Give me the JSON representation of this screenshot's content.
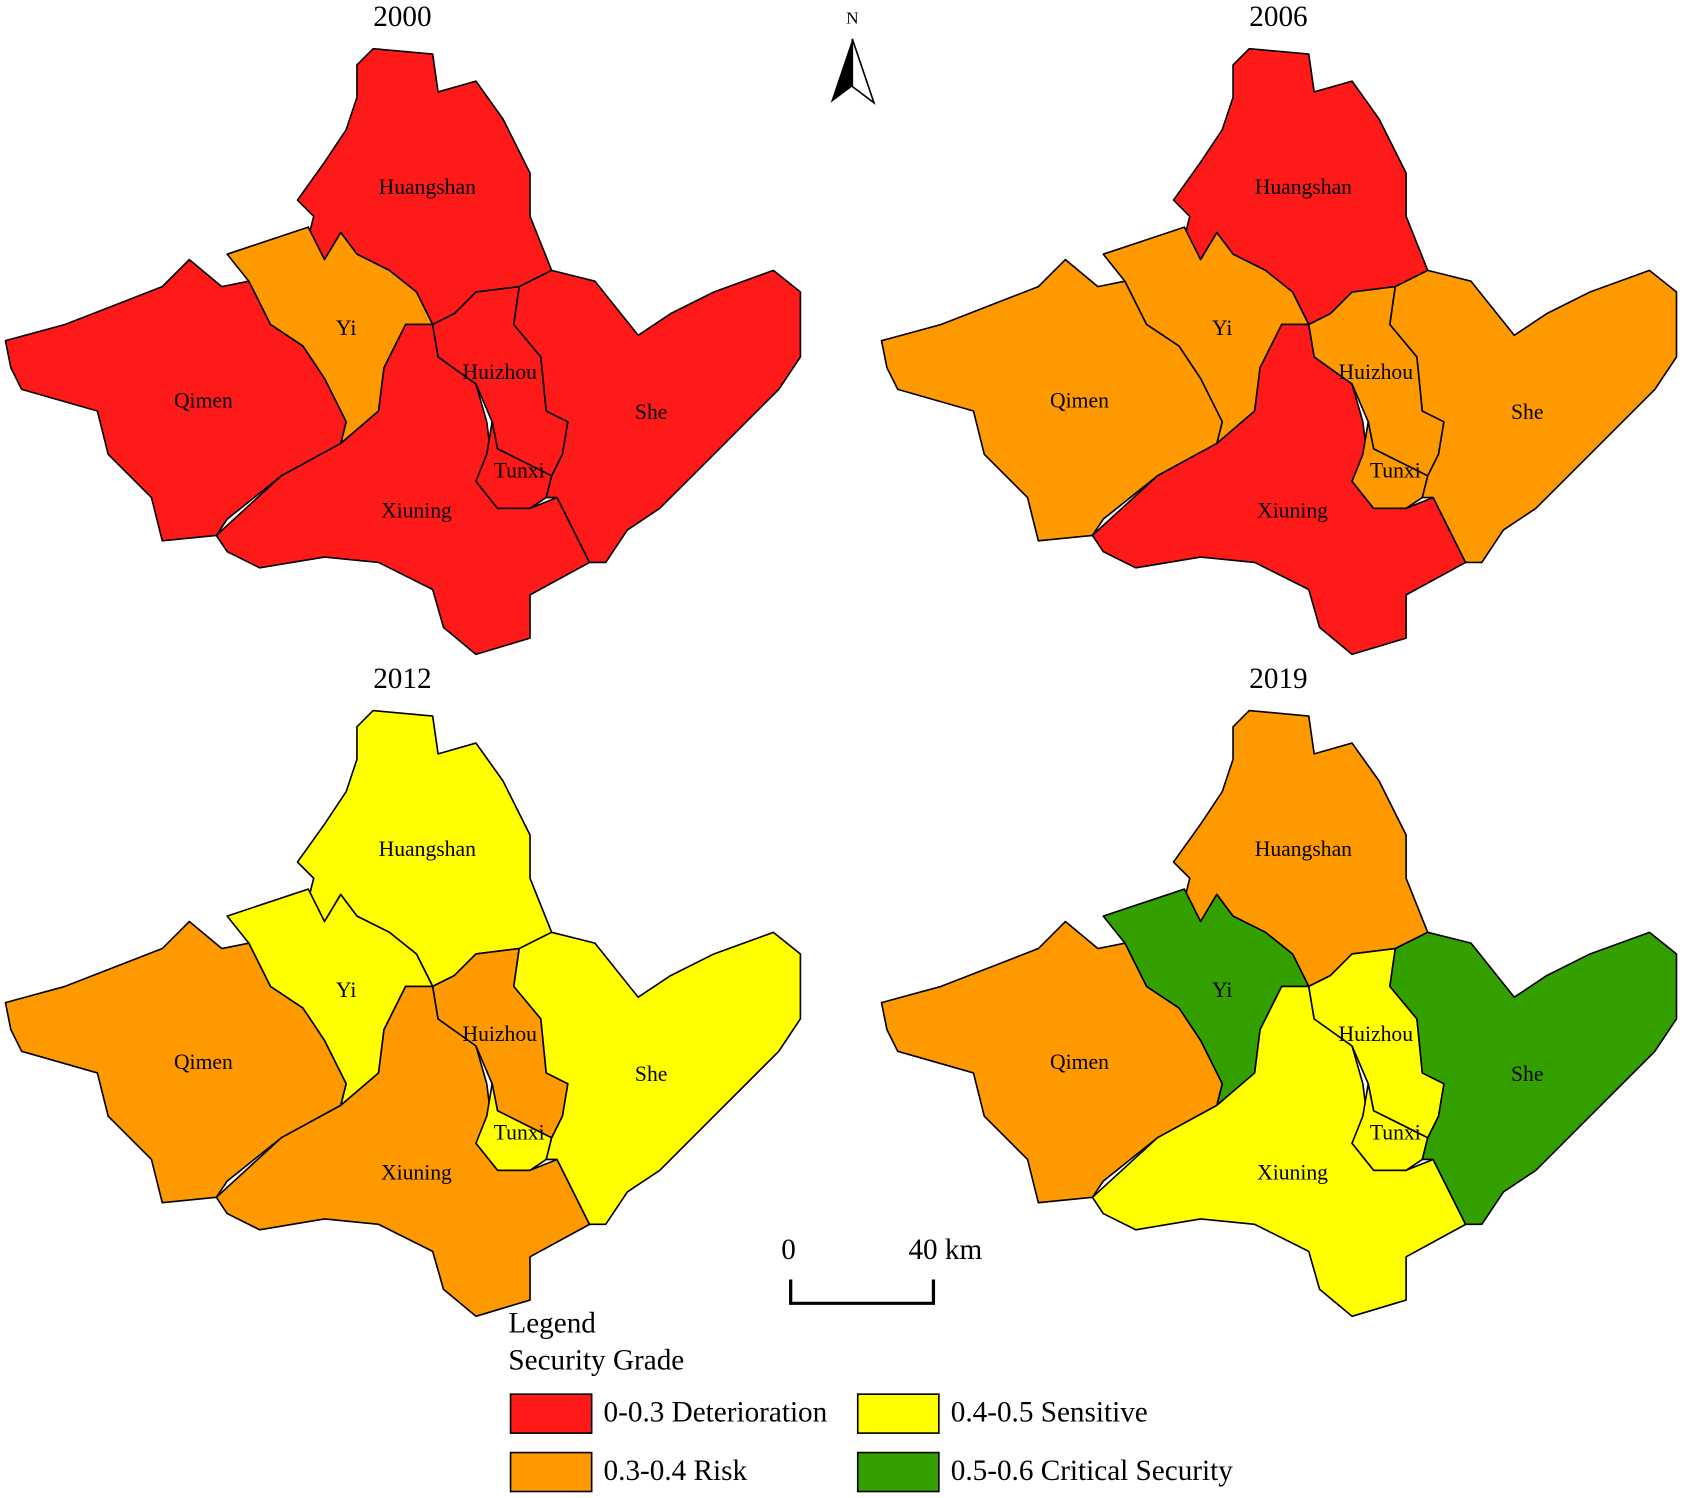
{
  "north": "N",
  "scale": {
    "start": "0",
    "end": "40 km"
  },
  "legend": {
    "title": "Legend",
    "subtitle": "Security Grade",
    "items": [
      {
        "label": "0-0.3 Deterioration",
        "color": "#ff1a1a"
      },
      {
        "label": "0.4-0.5 Sensitive",
        "color": "#ffff00"
      },
      {
        "label": "0.3-0.4 Risk",
        "color": "#ff9900"
      },
      {
        "label": "0.5-0.6 Critical Security",
        "color": "#33a000"
      }
    ]
  },
  "maps": [
    {
      "year": "2000",
      "regions": [
        {
          "name": "Huangshan",
          "color": "#ff1a1a"
        },
        {
          "name": "Yi",
          "color": "#ff9900"
        },
        {
          "name": "Qimen",
          "color": "#ff1a1a"
        },
        {
          "name": "Xiuning",
          "color": "#ff1a1a"
        },
        {
          "name": "Huizhou",
          "color": "#ff1a1a"
        },
        {
          "name": "Tunxi",
          "color": "#ff1a1a"
        },
        {
          "name": "She",
          "color": "#ff1a1a"
        }
      ]
    },
    {
      "year": "2006",
      "regions": [
        {
          "name": "Huangshan",
          "color": "#ff1a1a"
        },
        {
          "name": "Yi",
          "color": "#ff9900"
        },
        {
          "name": "Qimen",
          "color": "#ff9900"
        },
        {
          "name": "Xiuning",
          "color": "#ff1a1a"
        },
        {
          "name": "Huizhou",
          "color": "#ff9900"
        },
        {
          "name": "Tunxi",
          "color": "#ff9900"
        },
        {
          "name": "She",
          "color": "#ff9900"
        }
      ]
    },
    {
      "year": "2012",
      "regions": [
        {
          "name": "Huangshan",
          "color": "#ffff00"
        },
        {
          "name": "Yi",
          "color": "#ffff00"
        },
        {
          "name": "Qimen",
          "color": "#ff9900"
        },
        {
          "name": "Xiuning",
          "color": "#ff9900"
        },
        {
          "name": "Huizhou",
          "color": "#ff9900"
        },
        {
          "name": "Tunxi",
          "color": "#ffff00"
        },
        {
          "name": "She",
          "color": "#ffff00"
        }
      ]
    },
    {
      "year": "2019",
      "regions": [
        {
          "name": "Huangshan",
          "color": "#ff9900"
        },
        {
          "name": "Yi",
          "color": "#33a000"
        },
        {
          "name": "Qimen",
          "color": "#ff9900"
        },
        {
          "name": "Xiuning",
          "color": "#ffff00"
        },
        {
          "name": "Huizhou",
          "color": "#ffff00"
        },
        {
          "name": "Tunxi",
          "color": "#ffff00"
        },
        {
          "name": "She",
          "color": "#33a000"
        }
      ]
    }
  ]
}
